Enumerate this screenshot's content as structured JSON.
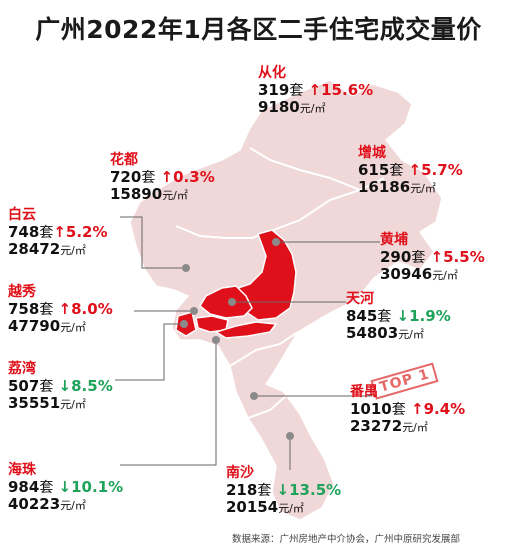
{
  "title": "广州2022年1月各区二手住宅成交量价",
  "source": "数据来源：广州房地产中介协会，广州中原研究发展部",
  "stamp": "TOP 1",
  "colors": {
    "highlight": "#e0101a",
    "base_region": "#f0d7d8",
    "up": "#e0101a",
    "down": "#1fa35a"
  },
  "districts": [
    {
      "name": "从化",
      "count": "319",
      "count_unit": "套",
      "arrow": "↑",
      "change": "15.6%",
      "price": "9180",
      "price_unit": "元/㎡"
    },
    {
      "name": "花都",
      "count": "720",
      "count_unit": "套",
      "arrow": "↑",
      "change": "0.3%",
      "price": "15890",
      "price_unit": "元/㎡"
    },
    {
      "name": "增城",
      "count": "615",
      "count_unit": "套",
      "arrow": "↑",
      "change": "5.7%",
      "price": "16186",
      "price_unit": "元/㎡"
    },
    {
      "name": "白云",
      "count": "748",
      "count_unit": "套",
      "arrow": "↑",
      "change": "5.2%",
      "price": "28472",
      "price_unit": "元/㎡"
    },
    {
      "name": "黄埔",
      "count": "290",
      "count_unit": "套",
      "arrow": "↑",
      "change": "5.5%",
      "price": "30946",
      "price_unit": "元/㎡"
    },
    {
      "name": "越秀",
      "count": "758",
      "count_unit": "套",
      "arrow": "↑",
      "change": "8.0%",
      "price": "47790",
      "price_unit": "元/㎡"
    },
    {
      "name": "天河",
      "count": "845",
      "count_unit": "套",
      "arrow": "↓",
      "change": "1.9%",
      "price": "54803",
      "price_unit": "元/㎡"
    },
    {
      "name": "荔湾",
      "count": "507",
      "count_unit": "套",
      "arrow": "↓",
      "change": "8.5%",
      "price": "35551",
      "price_unit": "元/㎡"
    },
    {
      "name": "番禺",
      "count": "1010",
      "count_unit": "套",
      "arrow": "↑",
      "change": "9.4%",
      "price": "23272",
      "price_unit": "元/㎡"
    },
    {
      "name": "海珠",
      "count": "984",
      "count_unit": "套",
      "arrow": "↓",
      "change": "10.1%",
      "price": "40223",
      "price_unit": "元/㎡"
    },
    {
      "name": "南沙",
      "count": "218",
      "count_unit": "套",
      "arrow": "↓",
      "change": "13.5%",
      "price": "20154",
      "price_unit": "元/㎡"
    }
  ]
}
